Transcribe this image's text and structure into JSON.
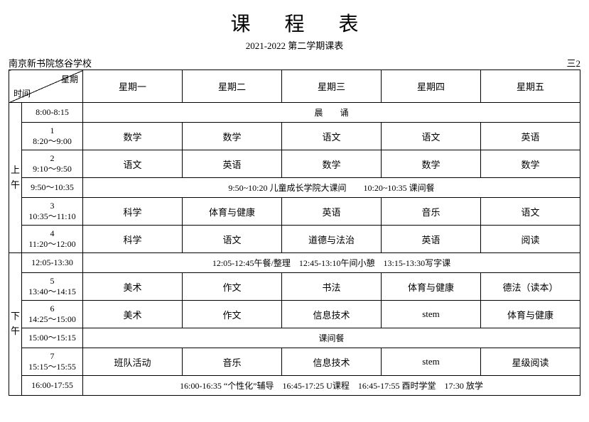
{
  "title": "课程表",
  "subtitle": "2021-2022 第二学期课表",
  "school": "南京新书院悠谷学校",
  "class_label": "三2",
  "diag": {
    "top": "星期",
    "bottom": "时间"
  },
  "days": [
    "星期一",
    "星期二",
    "星期三",
    "星期四",
    "星期五"
  ],
  "morning_label": "上午",
  "afternoon_label": "下午",
  "rows": {
    "r0": {
      "time": "8:00-8:15",
      "span_text": "晨　　诵"
    },
    "r1": {
      "num": "1",
      "time": "8:20～9:00",
      "cells": [
        "数学",
        "数学",
        "语文",
        "语文",
        "英语"
      ]
    },
    "r2": {
      "num": "2",
      "time": "9:10～9:50",
      "cells": [
        "语文",
        "英语",
        "数学",
        "数学",
        "数学"
      ]
    },
    "r3": {
      "time": "9:50～10:35",
      "span_text": "9:50~10:20 儿童成长学院大课间　　10:20~10:35 课间餐"
    },
    "r4": {
      "num": "3",
      "time": "10:35～11:10",
      "cells": [
        "科学",
        "体育与健康",
        "英语",
        "音乐",
        "语文"
      ]
    },
    "r5": {
      "num": "4",
      "time": "11:20～12:00",
      "cells": [
        "科学",
        "语文",
        "道德与法治",
        "英语",
        "阅读"
      ]
    },
    "r6": {
      "time": "12:05-13:30",
      "span_text": "12:05-12:45午餐/整理　12:45-13:10午间小憩　13:15-13:30写字课"
    },
    "r7": {
      "num": "5",
      "time": "13:40～14:15",
      "cells": [
        "美术",
        "作文",
        "书法",
        "体育与健康",
        "德法（读本）"
      ]
    },
    "r8": {
      "num": "6",
      "time": "14:25～15:00",
      "cells": [
        "美术",
        "作文",
        "信息技术",
        "stem",
        "体育与健康"
      ]
    },
    "r9": {
      "time": "15:00～15:15",
      "span_text": "课间餐"
    },
    "r10": {
      "num": "7",
      "time": "15:15～15:55",
      "cells": [
        "班队活动",
        "音乐",
        "信息技术",
        "stem",
        "星级阅读"
      ]
    },
    "r11": {
      "time": "16:00-17:55",
      "span_text": "16:00-16:35 “个性化”辅导　16:45-17:25 U课程　16:45-17:55 酉时学堂　17:30 放学"
    }
  },
  "colors": {
    "border": "#000000",
    "bg": "#ffffff",
    "text": "#000000"
  }
}
